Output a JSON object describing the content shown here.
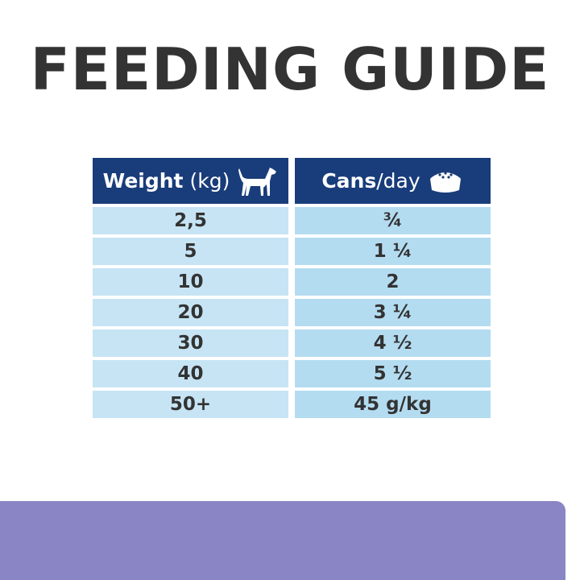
{
  "title": "FEEDING GUIDE",
  "table": {
    "headers": [
      {
        "bold": "Weight",
        "rest": " (kg)",
        "icon": "dog-icon"
      },
      {
        "bold": "Cans",
        "rest": "/day",
        "icon": "food-bowl-icon"
      }
    ],
    "rows": [
      [
        "2,5",
        "¾"
      ],
      [
        "5",
        "1 ¼"
      ],
      [
        "10",
        "2"
      ],
      [
        "20",
        "3 ¼"
      ],
      [
        "30",
        "4 ½"
      ],
      [
        "40",
        "5 ½"
      ],
      [
        "50+",
        "45 g/kg"
      ]
    ]
  },
  "colors": {
    "header": "#193c7a",
    "left_cell": "#c6e4f4",
    "right_cell": "#b4dcf1",
    "band": "#8a86c5"
  }
}
